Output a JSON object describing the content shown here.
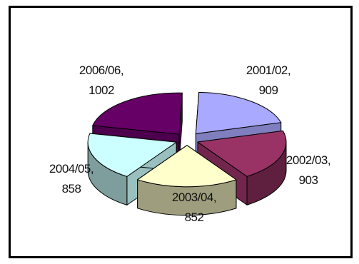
{
  "chart_data": {
    "type": "pie",
    "style": "3d-exploded",
    "categories": [
      "2001/02",
      "2002/03",
      "2003/04",
      "2004/05",
      "2006/06"
    ],
    "values": [
      909,
      903,
      852,
      858,
      1002
    ],
    "labels": [
      {
        "name": "2001/02,",
        "value": "909"
      },
      {
        "name": "2002/03,",
        "value": "903"
      },
      {
        "name": "2003/04,",
        "value": "852"
      },
      {
        "name": "2004/05,",
        "value": "858"
      },
      {
        "name": "2006/06,",
        "value": "1002"
      }
    ],
    "colors": [
      "#a9a9ff",
      "#993366",
      "#ffffcc",
      "#ccffff",
      "#660066"
    ],
    "legend": "none"
  }
}
